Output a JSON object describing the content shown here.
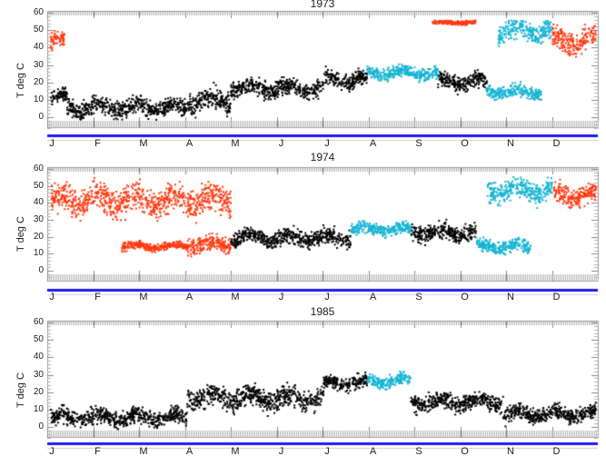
{
  "colors": {
    "normal": "#000000",
    "warm": "#16b4d4",
    "hot": "#ff3a12",
    "baseline": "#1a1aee",
    "frame": "#9a9a9a"
  },
  "months": [
    "J",
    "F",
    "M",
    "A",
    "M",
    "J",
    "J",
    "A",
    "S",
    "O",
    "N",
    "D"
  ],
  "chart_data": [
    {
      "type": "scatter",
      "title": "1973",
      "ylabel": "T deg C",
      "ylim": [
        -6,
        60
      ],
      "yticks": [
        0,
        10,
        20,
        30,
        40,
        50,
        60
      ],
      "xlabel": "",
      "x_ticks": [
        "J",
        "F",
        "M",
        "A",
        "M",
        "J",
        "J",
        "A",
        "S",
        "O",
        "N",
        "D"
      ],
      "series": [
        {
          "name": "black",
          "segments": [
            [
              0.0,
              0.03,
              12,
              3
            ],
            [
              0.03,
              0.25,
              6,
              4
            ],
            [
              0.25,
              0.33,
              10,
              5
            ],
            [
              0.33,
              0.5,
              17,
              4
            ],
            [
              0.5,
              0.58,
              22,
              4
            ],
            [
              0.71,
              0.8,
              21,
              4
            ]
          ]
        },
        {
          "name": "cyan",
          "segments": [
            [
              0.58,
              0.71,
              26,
              3
            ],
            [
              0.8,
              0.9,
              15,
              3
            ],
            [
              0.82,
              0.92,
              50,
              5
            ]
          ]
        },
        {
          "name": "red",
          "segments": [
            [
              0.0,
              0.025,
              44,
              4
            ],
            [
              0.92,
              1.0,
              45,
              6
            ],
            [
              0.7,
              0.78,
              55,
              1
            ]
          ]
        }
      ]
    },
    {
      "type": "scatter",
      "title": "1974",
      "ylabel": "T deg C",
      "ylim": [
        -6,
        60
      ],
      "yticks": [
        0,
        10,
        20,
        30,
        40,
        50,
        60
      ],
      "x_ticks": [
        "J",
        "F",
        "M",
        "A",
        "M",
        "J",
        "J",
        "A",
        "S",
        "O",
        "N",
        "D"
      ],
      "series": [
        {
          "name": "red",
          "segments": [
            [
              0.0,
              0.33,
              42,
              7
            ],
            [
              0.25,
              0.33,
              16,
              4
            ],
            [
              0.13,
              0.25,
              15,
              2
            ],
            [
              0.92,
              1.0,
              45,
              5
            ]
          ]
        },
        {
          "name": "black",
          "segments": [
            [
              0.33,
              0.55,
              20,
              4
            ],
            [
              0.66,
              0.78,
              23,
              4
            ]
          ]
        },
        {
          "name": "cyan",
          "segments": [
            [
              0.55,
              0.66,
              25,
              3
            ],
            [
              0.78,
              0.88,
              15,
              3
            ],
            [
              0.8,
              0.92,
              48,
              5
            ]
          ]
        }
      ]
    },
    {
      "type": "scatter",
      "title": "1985",
      "ylabel": "T deg C",
      "ylim": [
        -6,
        60
      ],
      "yticks": [
        0,
        10,
        20,
        30,
        40,
        50,
        60
      ],
      "x_ticks": [
        "J",
        "F",
        "M",
        "A",
        "M",
        "J",
        "J",
        "A",
        "S",
        "O",
        "N",
        "D"
      ],
      "series": [
        {
          "name": "black",
          "segments": [
            [
              0.0,
              0.25,
              6,
              4
            ],
            [
              0.25,
              0.5,
              17,
              5
            ],
            [
              0.5,
              0.58,
              26,
              3
            ],
            [
              0.66,
              0.83,
              15,
              4
            ],
            [
              0.83,
              1.0,
              8,
              4
            ]
          ]
        },
        {
          "name": "cyan",
          "segments": [
            [
              0.58,
              0.66,
              27,
              3
            ]
          ]
        },
        {
          "name": "red",
          "segments": []
        }
      ]
    }
  ],
  "panels": [
    {
      "title": "1973",
      "ylabel": "T deg C"
    },
    {
      "title": "1974",
      "ylabel": "T deg C"
    },
    {
      "title": "1985",
      "ylabel": "T deg C"
    }
  ]
}
